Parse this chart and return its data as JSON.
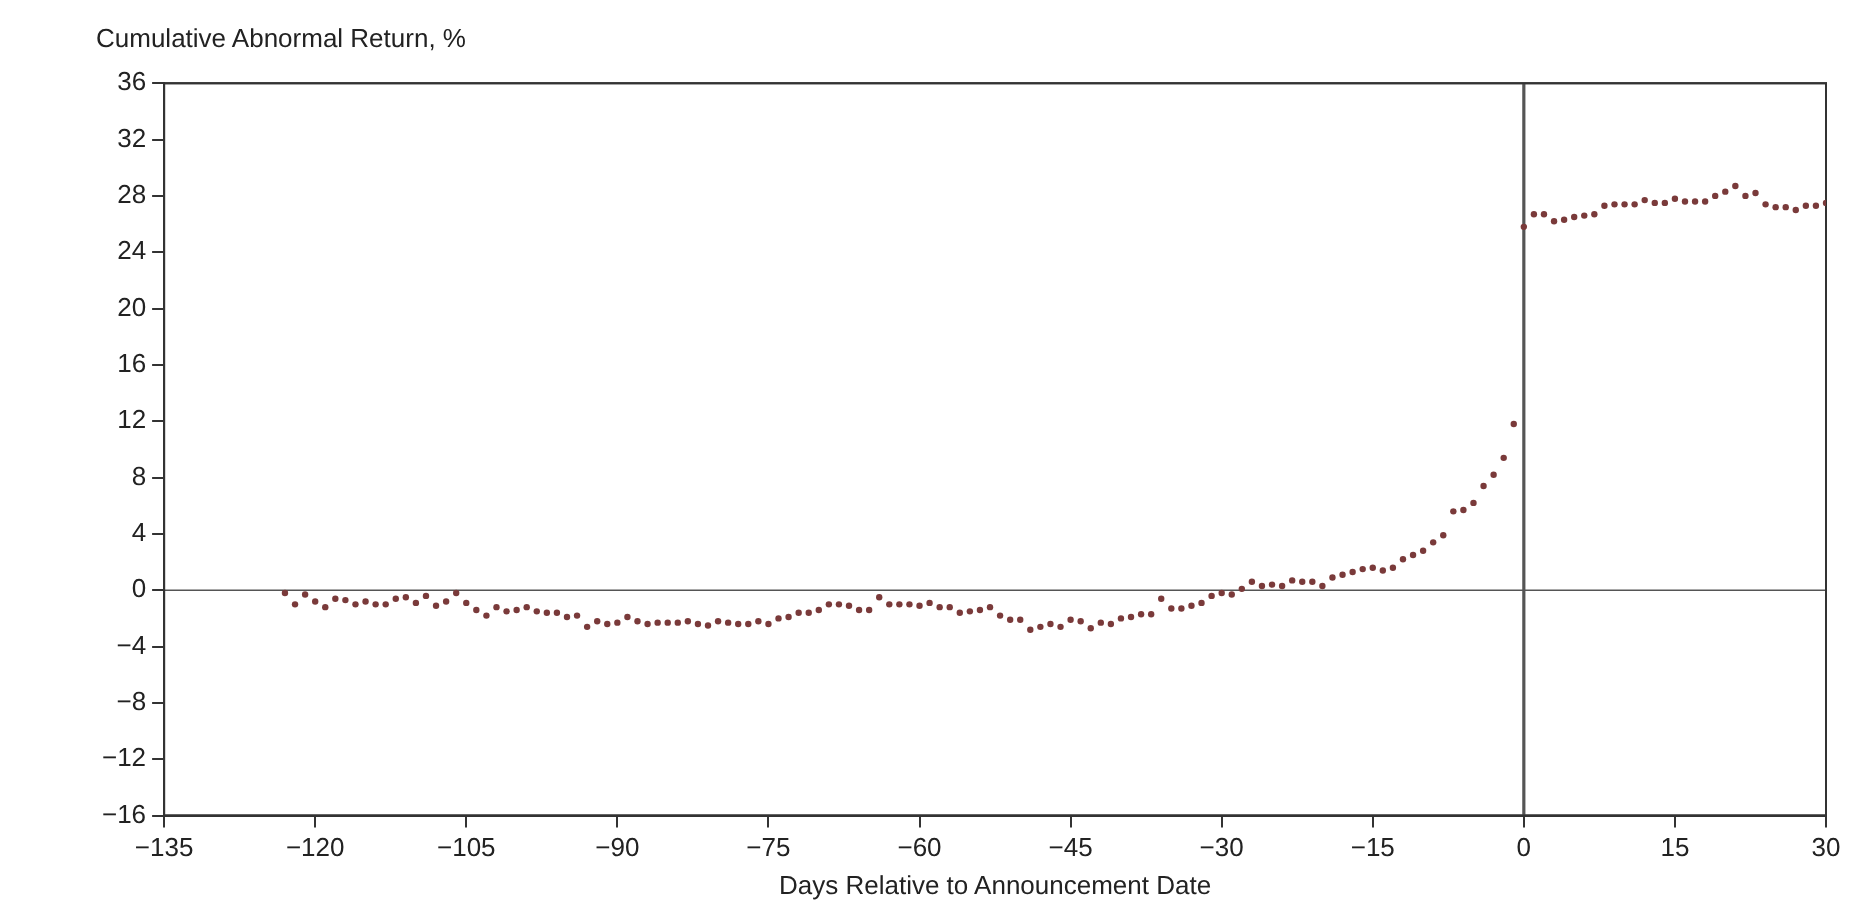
{
  "chart_data": {
    "type": "scatter",
    "ylabel": "Cumulative Abnormal Return, %",
    "xlabel": "Days Relative to Announcement Date",
    "x": [
      -123,
      -122,
      -121,
      -120,
      -119,
      -118,
      -117,
      -116,
      -115,
      -114,
      -113,
      -112,
      -111,
      -110,
      -109,
      -108,
      -107,
      -106,
      -105,
      -104,
      -103,
      -102,
      -101,
      -100,
      -99,
      -98,
      -97,
      -96,
      -95,
      -94,
      -93,
      -92,
      -91,
      -90,
      -89,
      -88,
      -87,
      -86,
      -85,
      -84,
      -83,
      -82,
      -81,
      -80,
      -79,
      -78,
      -77,
      -76,
      -75,
      -74,
      -73,
      -72,
      -71,
      -70,
      -69,
      -68,
      -67,
      -66,
      -65,
      -64,
      -63,
      -62,
      -61,
      -60,
      -59,
      -58,
      -57,
      -56,
      -55,
      -54,
      -53,
      -52,
      -51,
      -50,
      -49,
      -48,
      -47,
      -46,
      -45,
      -44,
      -43,
      -42,
      -41,
      -40,
      -39,
      -38,
      -37,
      -36,
      -35,
      -34,
      -33,
      -32,
      -31,
      -30,
      -29,
      -28,
      -27,
      -26,
      -25,
      -24,
      -23,
      -22,
      -21,
      -20,
      -19,
      -18,
      -17,
      -16,
      -15,
      -14,
      -13,
      -12,
      -11,
      -10,
      -9,
      -8,
      -7,
      -6,
      -5,
      -4,
      -3,
      -2,
      -1,
      0,
      1,
      2,
      3,
      4,
      5,
      6,
      7,
      8,
      9,
      10,
      11,
      12,
      13,
      14,
      15,
      16,
      17,
      18,
      19,
      20,
      21,
      22,
      23,
      24,
      25,
      26,
      27,
      28,
      29,
      30
    ],
    "series": [
      {
        "color": "#7a3a3a",
        "values": [
          -0.2,
          -1,
          -0.3,
          -0.8,
          -1.2,
          -0.6,
          -0.7,
          -1,
          -0.8,
          -1,
          -1,
          -0.6,
          -0.5,
          -0.9,
          -0.4,
          -1.1,
          -0.8,
          -0.2,
          -0.9,
          -1.4,
          -1.8,
          -1.2,
          -1.5,
          -1.4,
          -1.2,
          -1.5,
          -1.6,
          -1.6,
          -1.9,
          -1.8,
          -2.6,
          -2.2,
          -2.4,
          -2.3,
          -1.9,
          -2.2,
          -2.4,
          -2.3,
          -2.3,
          -2.3,
          -2.2,
          -2.4,
          -2.5,
          -2.2,
          -2.3,
          -2.4,
          -2.4,
          -2.2,
          -2.4,
          -2.0,
          -1.9,
          -1.6,
          -1.6,
          -1.4,
          -1.0,
          -1.0,
          -1.1,
          -1.4,
          -1.4,
          -0.5,
          -1.0,
          -1.0,
          -1.0,
          -1.1,
          -0.9,
          -1.2,
          -1.2,
          -1.6,
          -1.5,
          -1.4,
          -1.2,
          -1.8,
          -2.1,
          -2.1,
          -2.8,
          -2.6,
          -2.4,
          -2.6,
          -2.1,
          -2.2,
          -2.7,
          -2.3,
          -2.4,
          -2.0,
          -1.9,
          -1.7,
          -1.7,
          -0.6,
          -1.3,
          -1.3,
          -1.1,
          -0.9,
          -0.4,
          -0.2,
          -0.3,
          0.1,
          0.6,
          0.3,
          0.4,
          0.3,
          0.7,
          0.6,
          0.6,
          0.3,
          0.9,
          1.1,
          1.3,
          1.5,
          1.6,
          1.4,
          1.6,
          2.2,
          2.5,
          2.8,
          3.4,
          3.9,
          5.6,
          5.7,
          6.2,
          7.4,
          8.2,
          9.4,
          11.8,
          25.8,
          26.7,
          26.7,
          26.2,
          26.3,
          26.5,
          26.6,
          26.7,
          27.3,
          27.4,
          27.4,
          27.4,
          27.7,
          27.5,
          27.5,
          27.8,
          27.6,
          27.6,
          27.6,
          28.0,
          28.3,
          28.7,
          28.0,
          28.2,
          27.4,
          27.2,
          27.2,
          27.0,
          27.3,
          27.3,
          27.5
        ]
      }
    ],
    "marker": "circle",
    "grid": false,
    "legend": false,
    "xlim": [
      -135,
      30
    ],
    "xticks": [
      {
        "value": -135,
        "label": "−135"
      },
      {
        "value": -120,
        "label": "−120"
      },
      {
        "value": -105,
        "label": "−105"
      },
      {
        "value": -90,
        "label": "−90"
      },
      {
        "value": -75,
        "label": "−75"
      },
      {
        "value": -60,
        "label": "−60"
      },
      {
        "value": -45,
        "label": "−45"
      },
      {
        "value": -30,
        "label": "−30"
      },
      {
        "value": -15,
        "label": "−15"
      },
      0,
      15,
      30
    ],
    "ylim": [
      -16,
      36
    ],
    "yticks": [
      {
        "value": -16,
        "label": "−16"
      },
      {
        "value": -12,
        "label": "−12"
      },
      {
        "value": -8,
        "label": "−8"
      },
      {
        "value": -4,
        "label": "−4"
      },
      0,
      4,
      8,
      12,
      16,
      20,
      24,
      28,
      32,
      36
    ],
    "ref_lines": [
      {
        "axis": "y",
        "value": 0,
        "color": "#555555"
      },
      {
        "axis": "x",
        "value": 0,
        "color": "#555555"
      }
    ]
  }
}
